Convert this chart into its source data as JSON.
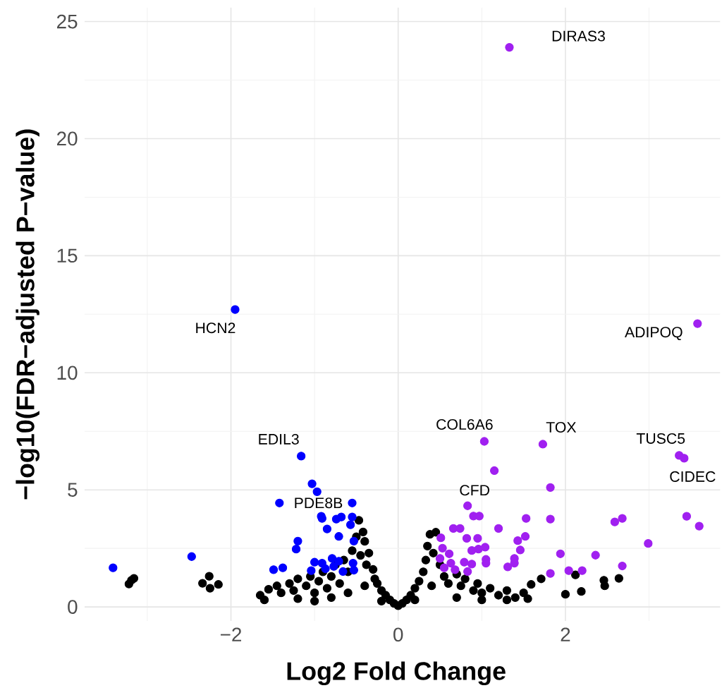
{
  "chart_data": {
    "type": "scatter",
    "xlabel": "Log2 Fold Change",
    "ylabel": "−log10(FDR−adjusted P−value)",
    "xlim": [
      -3.75,
      3.85
    ],
    "ylim": [
      -0.6,
      25.6
    ],
    "xticks": [
      {
        "value": -2,
        "label": "−2"
      },
      0,
      2
    ],
    "yticks": [
      0,
      5,
      10,
      15,
      20,
      25
    ],
    "grid": true,
    "series": [
      {
        "color": "#000000",
        "x": [
          -3.22,
          -3.19,
          -3.16,
          -2.26,
          -2.34,
          -2.25,
          -2.15,
          -1.65,
          -1.55,
          -1.45,
          -1.4,
          -1.3,
          -1.25,
          -1.2,
          -1.1,
          -1.05,
          -1.0,
          -0.95,
          -0.9,
          -0.85,
          -0.8,
          -0.75,
          -0.7,
          -0.65,
          -0.6,
          -0.55,
          -0.5,
          -0.47,
          -0.45,
          -0.42,
          -0.4,
          -0.38,
          -0.35,
          -0.3,
          -0.28,
          -0.25,
          -0.2,
          -0.15,
          -0.1,
          -0.05,
          0,
          0.05,
          0.1,
          0.15,
          0.2,
          0.25,
          0.3,
          0.33,
          0.35,
          0.38,
          0.45,
          0.42,
          0.5,
          0.55,
          0.6,
          0.7,
          0.75,
          0.8,
          0.9,
          0.95,
          1.0,
          1.1,
          1.2,
          1.3,
          1.4,
          1.5,
          1.55,
          1.71,
          1.59,
          2.0,
          2.19,
          2.12,
          2.46,
          2.47,
          2.64,
          -1.6,
          -1.2,
          -0.8,
          -0.6,
          -0.4,
          -1.0,
          0.4,
          0.7,
          1.0,
          1.3,
          0.2,
          -0.2
        ],
        "values": [
          0.98,
          1.14,
          1.22,
          1.31,
          1.01,
          0.8,
          0.96,
          0.5,
          0.75,
          0.9,
          0.6,
          1.0,
          0.7,
          1.2,
          0.9,
          1.3,
          0.6,
          1.1,
          1.5,
          0.8,
          1.3,
          1.8,
          1.0,
          2.0,
          1.5,
          2.4,
          3.0,
          3.7,
          2.2,
          3.2,
          2.8,
          1.8,
          2.3,
          1.6,
          1.2,
          1.0,
          0.7,
          0.5,
          0.3,
          0.15,
          0.05,
          0.15,
          0.3,
          0.5,
          0.8,
          1.1,
          1.5,
          2.0,
          2.6,
          3.1,
          3.19,
          2.3,
          1.8,
          1.3,
          1.0,
          1.4,
          0.9,
          1.2,
          0.7,
          1.0,
          0.6,
          0.8,
          0.5,
          0.7,
          0.4,
          0.6,
          0.35,
          1.2,
          0.96,
          0.54,
          0.66,
          1.37,
          1.14,
          0.9,
          1.22,
          0.3,
          0.35,
          0.4,
          0.6,
          0.9,
          0.25,
          0.9,
          0.4,
          0.3,
          0.3,
          0.3,
          0.25
        ]
      },
      {
        "color": "#0000ff",
        "x": [
          -1.95,
          -1.16,
          -1.03,
          -0.97,
          -1.42,
          -0.55,
          -0.92,
          -0.91,
          -0.74,
          -0.68,
          -0.55,
          -0.57,
          -0.85,
          -0.71,
          -1.2,
          -1.22,
          -0.53,
          -2.47,
          -3.41,
          -1.0,
          -0.91,
          -0.79,
          -0.71,
          -0.54,
          -1.49,
          -1.38,
          -1.04,
          -0.87,
          -0.66,
          -0.53,
          -0.77
        ],
        "values": [
          12.7,
          6.44,
          5.26,
          4.92,
          4.44,
          4.44,
          3.87,
          3.78,
          3.75,
          3.84,
          3.84,
          3.51,
          3.33,
          3.01,
          2.81,
          2.47,
          2.81,
          2.15,
          1.67,
          1.91,
          1.87,
          2.07,
          1.95,
          1.87,
          1.59,
          1.67,
          1.55,
          1.63,
          1.51,
          1.57,
          1.73
        ]
      },
      {
        "color": "#a020f0",
        "x": [
          1.33,
          3.58,
          1.03,
          1.73,
          1.15,
          3.36,
          3.42,
          1.82,
          0.83,
          0.9,
          0.97,
          1.53,
          1.82,
          2.59,
          2.68,
          3.45,
          3.6,
          0.66,
          0.74,
          1.2,
          0.82,
          0.95,
          1.52,
          1.43,
          0.51,
          0.53,
          0.88,
          0.96,
          1.04,
          1.46,
          2.99,
          1.94,
          2.36,
          0.61,
          0.5,
          1.05,
          1.05,
          1.39,
          1.39,
          0.79,
          0.88,
          0.63,
          1.31,
          2.68,
          2.04,
          2.2,
          1.82,
          0.55,
          0.68,
          0.83
        ],
        "values": [
          23.9,
          12.1,
          7.07,
          6.95,
          5.82,
          6.47,
          6.35,
          5.1,
          4.32,
          3.88,
          3.88,
          3.78,
          3.75,
          3.63,
          3.78,
          3.87,
          3.45,
          3.35,
          3.35,
          3.35,
          2.93,
          2.93,
          3.01,
          2.83,
          2.95,
          2.51,
          2.41,
          2.47,
          2.55,
          2.43,
          2.71,
          2.27,
          2.21,
          2.27,
          2.07,
          2.03,
          1.87,
          2.07,
          1.87,
          1.91,
          1.83,
          1.87,
          1.71,
          1.75,
          1.55,
          1.55,
          1.43,
          1.67,
          1.59,
          1.51
        ]
      }
    ],
    "annotations": [
      {
        "text": "HCN2",
        "x": -1.95,
        "y": 12.7
      },
      {
        "text": "DIRAS3",
        "x": 1.33,
        "y": 23.9
      },
      {
        "text": "ADIPOQ",
        "x": 3.58,
        "y": 12.1
      },
      {
        "text": "EDIL3",
        "x": -1.16,
        "y": 6.44
      },
      {
        "text": "PDE8B",
        "x": -0.55,
        "y": 4.44
      },
      {
        "text": "COL6A6",
        "x": 1.03,
        "y": 7.07
      },
      {
        "text": "TOX",
        "x": 1.73,
        "y": 6.95
      },
      {
        "text": "TUSC5",
        "x": 3.36,
        "y": 6.47
      },
      {
        "text": "CIDEC",
        "x": 3.42,
        "y": 6.35
      },
      {
        "text": "CFD",
        "x": 0.83,
        "y": 4.32
      }
    ]
  }
}
